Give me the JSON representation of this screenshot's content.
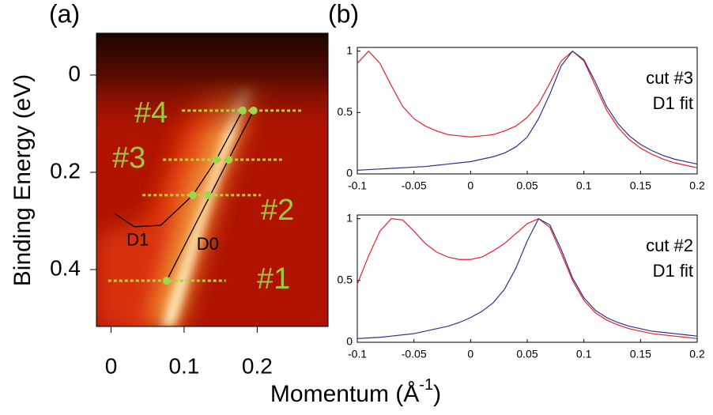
{
  "chart_data": [
    {
      "type": "scatter",
      "label": "(a)",
      "ylabel": "Binding Energy (eV)",
      "xlabel_parts": [
        "Momentum (Å",
        "-1",
        ")"
      ],
      "xlim": [
        -0.02,
        0.297
      ],
      "ylim": [
        -0.086,
        0.517
      ],
      "xticks": [
        0,
        0.1,
        0.2
      ],
      "yticks": [
        0,
        0.2,
        0.4
      ],
      "inverted_y": true,
      "cut_color": "#b5d334",
      "point_color": "#9ed84a",
      "label_color": "#9fc93c",
      "cuts": [
        {
          "label": "#1",
          "y": 0.423,
          "x_range": [
            -0.004,
            0.157
          ],
          "points": [
            0.076
          ]
        },
        {
          "label": "#2",
          "y": 0.247,
          "x_range": [
            0.043,
            0.205
          ],
          "points": [
            0.112,
            0.133
          ]
        },
        {
          "label": "#3",
          "y": 0.174,
          "x_range": [
            0.071,
            0.234
          ],
          "points": [
            0.144,
            0.161
          ]
        },
        {
          "label": "#4",
          "y": 0.073,
          "x_range": [
            0.097,
            0.26
          ],
          "points": [
            0.18,
            0.195
          ]
        }
      ],
      "series": [
        {
          "name": "D1",
          "color": "#000000",
          "x": [
            0.005,
            0.032,
            0.068,
            0.112,
            0.144,
            0.18
          ],
          "values": [
            0.285,
            0.312,
            0.309,
            0.247,
            0.174,
            0.073
          ]
        },
        {
          "name": "D0",
          "color": "#000000",
          "x": [
            0.076,
            0.195
          ],
          "values": [
            0.423,
            0.073
          ]
        }
      ]
    },
    {
      "type": "line",
      "label": "(b)",
      "annotations": [
        "cut #3",
        "D1 fit"
      ],
      "xlim": [
        -0.1,
        0.2
      ],
      "ylim": [
        0,
        1.03
      ],
      "xticks": [
        -0.1,
        -0.05,
        0,
        0.05,
        0.1,
        0.15,
        0.2
      ],
      "yticks": [
        0,
        0.5,
        1
      ],
      "x": [
        -0.1,
        -0.09,
        -0.08,
        -0.07,
        -0.06,
        -0.05,
        -0.04,
        -0.03,
        -0.02,
        -0.01,
        0,
        0.01,
        0.02,
        0.03,
        0.04,
        0.05,
        0.06,
        0.07,
        0.08,
        0.09,
        0.1,
        0.11,
        0.12,
        0.13,
        0.14,
        0.15,
        0.16,
        0.17,
        0.18,
        0.19,
        0.2
      ],
      "series": [
        {
          "color": "#e8212e",
          "values": [
            0.9,
            1.0,
            0.9,
            0.72,
            0.55,
            0.45,
            0.39,
            0.35,
            0.32,
            0.31,
            0.3,
            0.31,
            0.32,
            0.35,
            0.39,
            0.46,
            0.57,
            0.74,
            0.92,
            1.0,
            0.92,
            0.72,
            0.52,
            0.38,
            0.28,
            0.21,
            0.16,
            0.12,
            0.09,
            0.07,
            0.05
          ]
        },
        {
          "color": "#26348f",
          "values": [
            0.03,
            0.035,
            0.04,
            0.045,
            0.05,
            0.055,
            0.06,
            0.07,
            0.08,
            0.09,
            0.1,
            0.12,
            0.14,
            0.17,
            0.22,
            0.3,
            0.45,
            0.65,
            0.88,
            1.0,
            0.93,
            0.75,
            0.55,
            0.41,
            0.31,
            0.24,
            0.19,
            0.15,
            0.12,
            0.1,
            0.08
          ]
        }
      ]
    },
    {
      "type": "line",
      "annotations": [
        "cut #2",
        "D1 fit"
      ],
      "xlim": [
        -0.1,
        0.2
      ],
      "ylim": [
        0,
        1.03
      ],
      "xticks": [
        -0.1,
        -0.05,
        0,
        0.05,
        0.1,
        0.15,
        0.2
      ],
      "yticks": [
        0,
        0.5,
        1
      ],
      "x": [
        -0.1,
        -0.09,
        -0.08,
        -0.07,
        -0.06,
        -0.05,
        -0.04,
        -0.03,
        -0.02,
        -0.01,
        0,
        0.01,
        0.02,
        0.03,
        0.04,
        0.05,
        0.06,
        0.07,
        0.08,
        0.09,
        0.1,
        0.11,
        0.12,
        0.13,
        0.14,
        0.15,
        0.16,
        0.17,
        0.18,
        0.19,
        0.2
      ],
      "series": [
        {
          "color": "#e8212e",
          "values": [
            0.47,
            0.7,
            0.9,
            1.0,
            0.99,
            0.9,
            0.8,
            0.73,
            0.69,
            0.67,
            0.67,
            0.69,
            0.74,
            0.8,
            0.88,
            0.96,
            1.0,
            0.93,
            0.72,
            0.5,
            0.34,
            0.24,
            0.18,
            0.14,
            0.11,
            0.09,
            0.07,
            0.06,
            0.05,
            0.04,
            0.03
          ]
        },
        {
          "color": "#26348f",
          "values": [
            0.03,
            0.035,
            0.04,
            0.05,
            0.06,
            0.07,
            0.09,
            0.11,
            0.13,
            0.16,
            0.2,
            0.25,
            0.32,
            0.43,
            0.6,
            0.82,
            1.0,
            0.95,
            0.75,
            0.52,
            0.36,
            0.26,
            0.2,
            0.16,
            0.13,
            0.11,
            0.09,
            0.08,
            0.07,
            0.06,
            0.05
          ]
        }
      ]
    }
  ]
}
